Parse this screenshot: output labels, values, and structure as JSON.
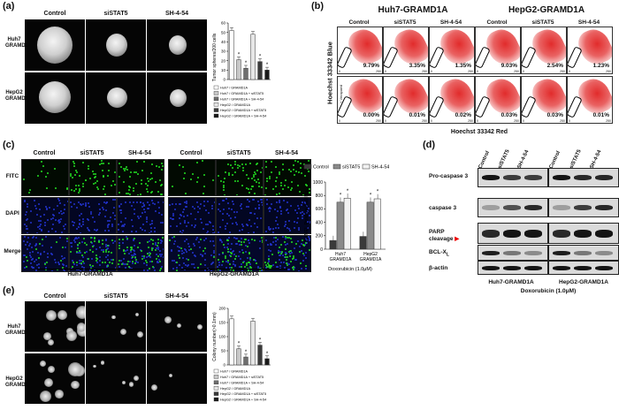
{
  "panel_labels": [
    "(a)",
    "(b)",
    "(c)",
    "(d)",
    "(e)"
  ],
  "panel_a": {
    "columns": [
      "Control",
      "siSTAT5",
      "SH-4-54"
    ],
    "rows": [
      {
        "line1": "Huh7",
        "line2": "GRAMD1A"
      },
      {
        "line1": "HepG2",
        "line2": "GRAMD1A"
      }
    ]
  },
  "panel_b": {
    "groups": [
      "Huh7-GRAMD1A",
      "HepG2-GRAMD1A"
    ],
    "columns": [
      "Control",
      "siSTAT5",
      "SH-4-54",
      "Control",
      "siSTAT5",
      "SH-4-54"
    ],
    "row1_pct": [
      "9.79%",
      "3.35%",
      "1.35%",
      "9.03%",
      "2.54%",
      "1.23%"
    ],
    "row2_pct": [
      "0.00%",
      "0.01%",
      "0.02%",
      "0.03%",
      "0.03%",
      "0.01%"
    ],
    "ylabel": "Hoechst 33342 Blue",
    "xlabel": "Hoechst 33342 Red",
    "verapamil": "+ Verapamil",
    "axis_ticks": [
      "0",
      "250"
    ]
  },
  "panel_c": {
    "columns": [
      "Control",
      "siSTAT5",
      "SH-4-54",
      "Control",
      "siSTAT5",
      "SH-4-54"
    ],
    "rows": [
      "FITC",
      "DAPI",
      "Merge"
    ],
    "groups": [
      "Huh7-GRAMD1A",
      "HepG2-GRAMD1A"
    ]
  },
  "panel_d": {
    "columns": [
      "Control",
      "siSTAT5",
      "SH-4-54",
      "Control",
      "siSTAT5",
      "SH-4-54"
    ],
    "labels": [
      "Pro-caspase 3",
      "caspase 3",
      "PARP",
      "cleavage",
      "BCL-X",
      "L",
      "β-actin"
    ],
    "groups": [
      "Huh7-GRAMD1A",
      "HepG2-GRAMD1A"
    ],
    "treatment": "Doxorubicin (1.0μM)"
  },
  "panel_e": {
    "columns": [
      "Control",
      "siSTAT5",
      "SH-4-54"
    ],
    "rows": [
      {
        "line1": "Huh7",
        "line2": "GRAMD1A"
      },
      {
        "line1": "HepG2",
        "line2": "GRAMD1A"
      }
    ]
  },
  "colors": {
    "bar_white": "#ffffff",
    "bar_lightgray": "#c8c8c8",
    "bar_darkgray": "#6e6e6e",
    "bar_dark": "#2b2b2b",
    "fitc_green": "#22dd22",
    "dapi_blue": "#2233cc",
    "flow_red": "#e02020"
  },
  "chart_data": [
    {
      "type": "bar",
      "ylabel": "Tumor spheres/200 cells",
      "ylim": [
        0,
        60
      ],
      "yticks": [
        "0",
        "10",
        "20",
        "30",
        "40",
        "50",
        "60"
      ],
      "series": [
        {
          "name": "Huh7 / GRAMD1A",
          "values": [
            52
          ]
        },
        {
          "name": "Huh7 / GRAMD1A + siSTAT5",
          "values": [
            21
          ]
        },
        {
          "name": "Huh7 / GRAMD1A + SH-4-54",
          "values": [
            12
          ]
        },
        {
          "name": "HepG2 / GRAMD1A",
          "values": [
            48
          ]
        },
        {
          "name": "HepG2 / GRAMD1A + siSTAT5",
          "values": [
            19
          ]
        },
        {
          "name": "HepG2 / GRAMD1A + SH-4-54",
          "values": [
            10
          ]
        }
      ],
      "legend_position": "bottom"
    },
    {
      "type": "bar",
      "ylabel": "TUNEL Positive Cell No.",
      "ylim": [
        0,
        1000
      ],
      "yticks": [
        "0",
        "200",
        "400",
        "600",
        "800",
        "1000"
      ],
      "categories": [
        "Huh7 GRAMD1A",
        "HepG2 GRAMD1A"
      ],
      "xlabel": "Doxorubicin (1.0μM)",
      "series": [
        {
          "name": "Control",
          "values": [
            130,
            190
          ]
        },
        {
          "name": "siSTAT5",
          "values": [
            700,
            700
          ]
        },
        {
          "name": "SH-4-54",
          "values": [
            760,
            750
          ]
        }
      ],
      "legend_position": "top"
    },
    {
      "type": "bar",
      "ylabel": "Colony number(>0.1mm)",
      "ylim": [
        0,
        200
      ],
      "yticks": [
        "0",
        "50",
        "100",
        "150",
        "200"
      ],
      "series": [
        {
          "name": "Huh7 / GRAMD1A",
          "values": [
            163
          ]
        },
        {
          "name": "Huh7 / GRAMD1A + siSTAT5",
          "values": [
            57
          ]
        },
        {
          "name": "Huh7 / GRAMD1A + SH-4-54",
          "values": [
            28
          ]
        },
        {
          "name": "HepG2 / GRAMD1A",
          "values": [
            155
          ]
        },
        {
          "name": "HepG2 / GRAMD1A + siSTAT5",
          "values": [
            70
          ]
        },
        {
          "name": "HepG2 / GRAMD1A + SH-4-54",
          "values": [
            22
          ]
        }
      ],
      "legend_position": "bottom"
    }
  ]
}
